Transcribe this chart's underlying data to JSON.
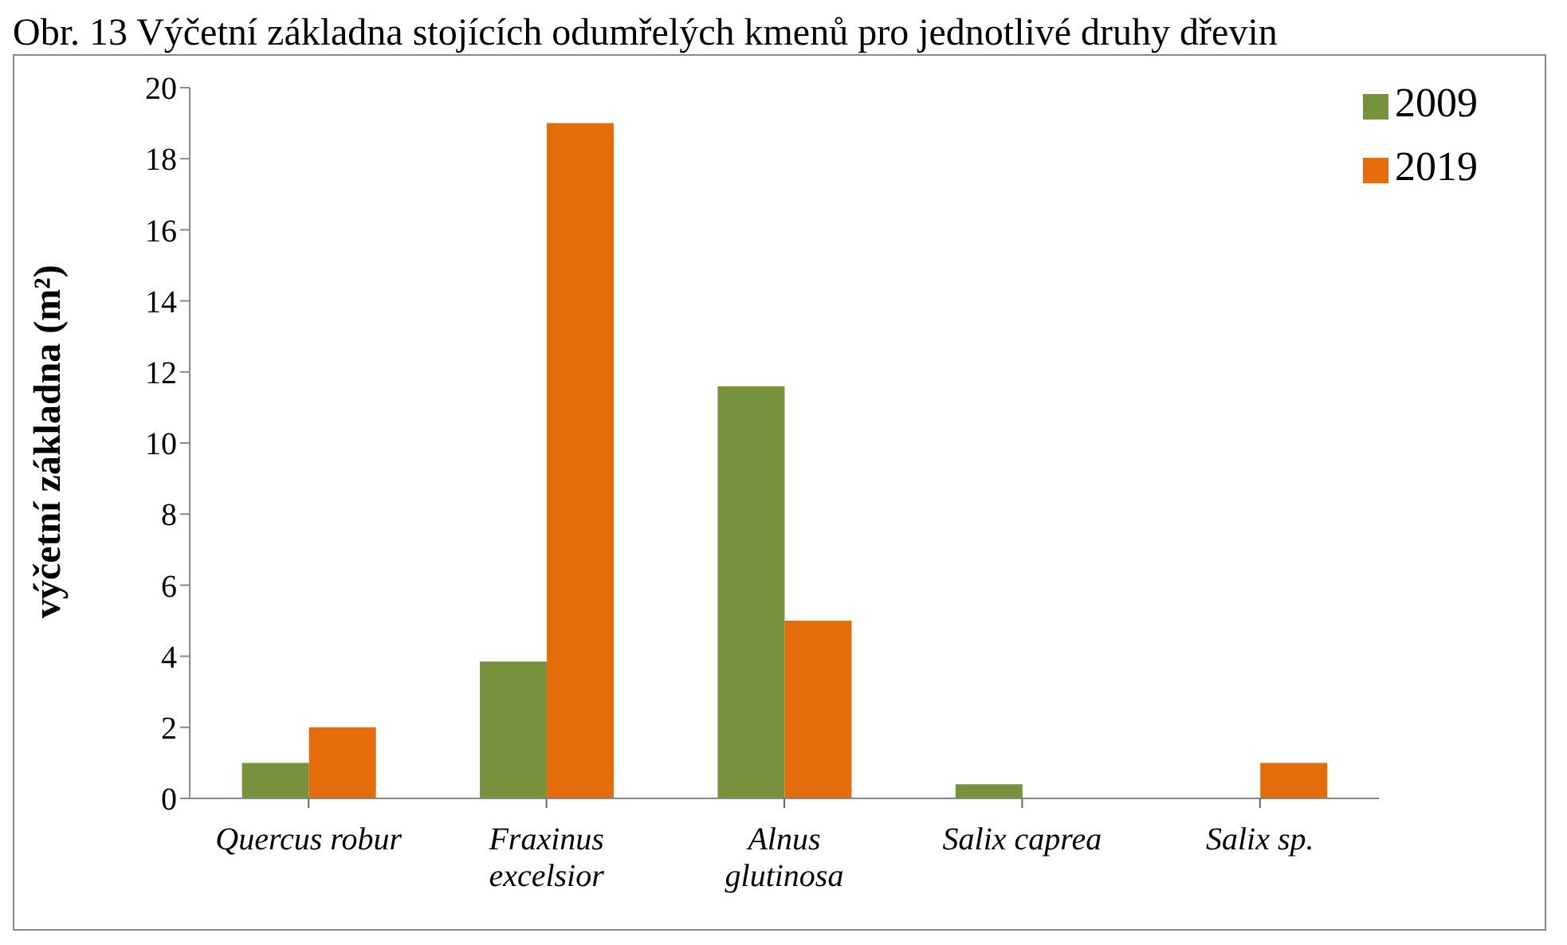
{
  "chart_data": {
    "type": "bar",
    "title": "Obr. 13 Výčetní základna stojících odumřelých kmenů pro jednotlivé druhy dřevin",
    "ylabel": "výčetní základna  (m²)",
    "categories": [
      "Quercus robur",
      "Fraxinus excelsior",
      "Alnus glutinosa",
      "Salix caprea",
      "Salix sp."
    ],
    "series": [
      {
        "name": "2009",
        "color": "#76923c",
        "values": [
          1.0,
          3.85,
          11.6,
          0.4,
          0
        ]
      },
      {
        "name": "2019",
        "color": "#e46c0a",
        "values": [
          2.0,
          19.0,
          5.0,
          0,
          1.0
        ]
      }
    ],
    "ylim": [
      0,
      20
    ],
    "yticks": [
      0,
      2,
      4,
      6,
      8,
      10,
      12,
      14,
      16,
      18,
      20
    ],
    "grid": false,
    "legend": "top right"
  }
}
